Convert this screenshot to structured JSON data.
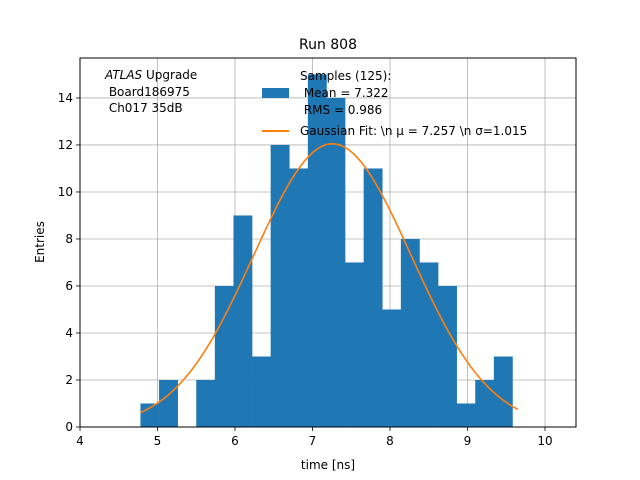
{
  "chart_data": {
    "type": "bar",
    "title": "Run 808",
    "xlabel": "time [ns]",
    "ylabel": "Entries",
    "xlim": [
      4,
      10.4
    ],
    "ylim": [
      0,
      15.7
    ],
    "grid": true,
    "x_ticks": [
      "4",
      "5",
      "6",
      "7",
      "8",
      "9",
      "10"
    ],
    "y_ticks": [
      "0",
      "2",
      "4",
      "6",
      "8",
      "10",
      "12",
      "14"
    ],
    "annotation": {
      "line1_italic": "ATLAS",
      "line1_rest": " Upgrade",
      "line2": " Board186975",
      "line3": " Ch017 35dB"
    },
    "legend": {
      "placement": "top-right",
      "histogram_label_lines": [
        "Samples (125):",
        " Mean = 7.322",
        " RMS = 0.986"
      ],
      "fit_label": "Gaussian Fit: \\n μ = 7.257 \\n σ=1.015"
    },
    "bin_width": 0.24,
    "bins": [
      {
        "x0": 4.78,
        "count": 1
      },
      {
        "x0": 5.02,
        "count": 2
      },
      {
        "x0": 5.26,
        "count": 0
      },
      {
        "x0": 5.5,
        "count": 2
      },
      {
        "x0": 5.74,
        "count": 6
      },
      {
        "x0": 5.98,
        "count": 9
      },
      {
        "x0": 6.22,
        "count": 3
      },
      {
        "x0": 6.46,
        "count": 12
      },
      {
        "x0": 6.7,
        "count": 11
      },
      {
        "x0": 6.94,
        "count": 15
      },
      {
        "x0": 7.18,
        "count": 14
      },
      {
        "x0": 7.42,
        "count": 7
      },
      {
        "x0": 7.66,
        "count": 11
      },
      {
        "x0": 7.9,
        "count": 5
      },
      {
        "x0": 8.14,
        "count": 8
      },
      {
        "x0": 8.38,
        "count": 7
      },
      {
        "x0": 8.62,
        "count": 6
      },
      {
        "x0": 8.86,
        "count": 1
      },
      {
        "x0": 9.1,
        "count": 2
      },
      {
        "x0": 9.34,
        "count": 3
      }
    ],
    "gaussian_fit": {
      "mu": 7.257,
      "sigma": 1.015,
      "amplitude": 12.05,
      "x_range": [
        4.78,
        9.65
      ]
    },
    "colors": {
      "histogram": "#1f77b4",
      "fit": "#ff7f0e",
      "grid": "#b0b0b0"
    }
  }
}
